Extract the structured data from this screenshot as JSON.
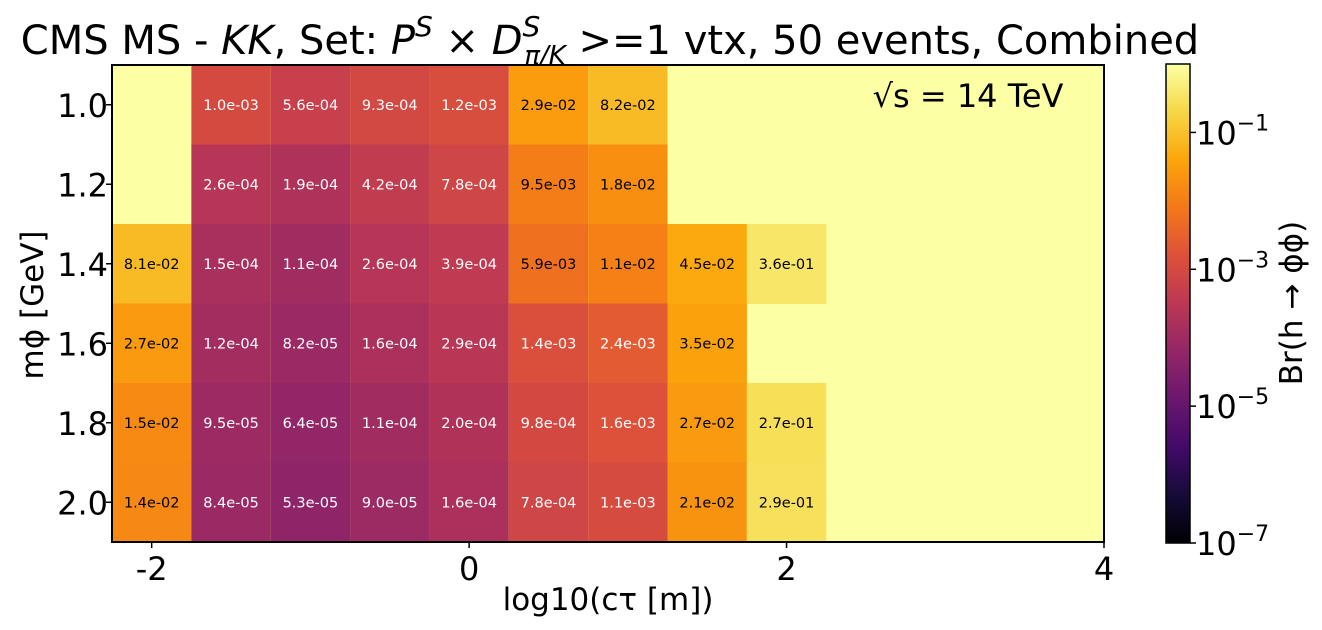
{
  "chart_data": {
    "type": "heatmap",
    "title_parts": {
      "prefix": "CMS MS - ",
      "channel": "KK",
      "set_label": ", Set: ",
      "p": "P",
      "p_sup": "S",
      "times": " × ",
      "d": "D",
      "d_sup": "S",
      "d_sub": "π/K",
      "suffix": " >=1 vtx, 50 events, Combined"
    },
    "annotation": "√s = 14 TeV",
    "xlabel": "log10(cτ [m])",
    "ylabel": "mϕ [GeV]",
    "colorbar_label": "Br(h → ϕϕ)",
    "xlim": [
      -2.25,
      4.0
    ],
    "x_ticks": [
      "-2",
      "0",
      "2",
      "4"
    ],
    "x_tick_values": [
      -2,
      0,
      2,
      4
    ],
    "y_categories": [
      "1.0",
      "1.2",
      "1.4",
      "1.6",
      "1.8",
      "2.0"
    ],
    "x_centers": [
      -2.0,
      -1.5,
      -1.0,
      -0.5,
      0.0,
      0.5,
      1.0,
      1.5,
      2.0
    ],
    "x_cell_width": 0.5,
    "background_value": 1.0,
    "color_scale": "log",
    "colormap": "inferno",
    "vlim": [
      1e-07,
      1.0
    ],
    "colorbar_ticks": [
      "10^-1",
      "10^-3",
      "10^-5",
      "10^-7"
    ],
    "colorbar_tick_values": [
      0.1,
      0.001,
      1e-05,
      1e-07
    ],
    "values": [
      [
        null,
        0.001,
        0.00056,
        0.00093,
        0.0012,
        0.029,
        0.082,
        null,
        null
      ],
      [
        null,
        0.00026,
        0.00019,
        0.00042,
        0.00078,
        0.0095,
        0.018,
        null,
        null
      ],
      [
        0.081,
        0.00015,
        0.00011,
        0.00026,
        0.00039,
        0.0059,
        0.011,
        0.045,
        0.36
      ],
      [
        0.027,
        0.00012,
        8.2e-05,
        0.00016,
        0.00029,
        0.0014,
        0.0024,
        0.035,
        null
      ],
      [
        0.015,
        9.5e-05,
        6.4e-05,
        0.00011,
        0.0002,
        0.00098,
        0.0016,
        0.027,
        0.27
      ],
      [
        0.014,
        8.4e-05,
        5.3e-05,
        9e-05,
        0.00016,
        0.00078,
        0.0011,
        0.021,
        0.29
      ]
    ],
    "labels": [
      [
        "",
        "1.0e-03",
        "5.6e-04",
        "9.3e-04",
        "1.2e-03",
        "2.9e-02",
        "8.2e-02",
        "",
        ""
      ],
      [
        "",
        "2.6e-04",
        "1.9e-04",
        "4.2e-04",
        "7.8e-04",
        "9.5e-03",
        "1.8e-02",
        "",
        ""
      ],
      [
        "8.1e-02",
        "1.5e-04",
        "1.1e-04",
        "2.6e-04",
        "3.9e-04",
        "5.9e-03",
        "1.1e-02",
        "4.5e-02",
        "3.6e-01"
      ],
      [
        "2.7e-02",
        "1.2e-04",
        "8.2e-05",
        "1.6e-04",
        "2.9e-04",
        "1.4e-03",
        "2.4e-03",
        "3.5e-02",
        ""
      ],
      [
        "1.5e-02",
        "9.5e-05",
        "6.4e-05",
        "1.1e-04",
        "2.0e-04",
        "9.8e-04",
        "1.6e-03",
        "2.7e-02",
        "2.7e-01"
      ],
      [
        "1.4e-02",
        "8.4e-05",
        "5.3e-05",
        "9.0e-05",
        "1.6e-04",
        "7.8e-04",
        "1.1e-03",
        "2.1e-02",
        "2.9e-01"
      ]
    ]
  }
}
